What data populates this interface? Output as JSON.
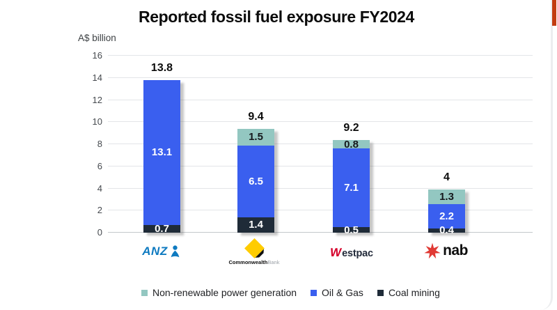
{
  "chart_data": {
    "type": "bar",
    "stacked": true,
    "title": "Reported fossil fuel exposure FY2024",
    "ylabel": "A$ billion",
    "ylim": [
      0,
      16
    ],
    "yticks": [
      16,
      14,
      12,
      10,
      8,
      6,
      4,
      2,
      0
    ],
    "grid": true,
    "legend_position": "bottom",
    "categories": [
      "ANZ",
      "Commonwealth Bank",
      "Westpac",
      "nab"
    ],
    "totals": [
      "13.8",
      "9.4",
      "9.2",
      "4"
    ],
    "series": [
      {
        "name": "Non-renewable power generation",
        "color": "#93C7C1",
        "values": [
          0,
          1.5,
          0.8,
          1.3
        ]
      },
      {
        "name": "Oil & Gas",
        "color": "#3A5FEF",
        "values": [
          13.1,
          6.5,
          7.1,
          2.2
        ]
      },
      {
        "name": "Coal mining",
        "color": "#1F2B38",
        "values": [
          0.7,
          1.4,
          0.5,
          0.4
        ]
      }
    ]
  },
  "logos": {
    "anz": "ANZ",
    "cba_bold": "Commonwealth",
    "cba_light": "Bank",
    "westpac_w": "W",
    "westpac_rest": "estpac",
    "nab": "nab",
    "anz_blue": "#0E7AC0",
    "cba_yellow": "#FFCC00",
    "westpac_red": "#D5002B",
    "nab_red": "#E03A34"
  },
  "ui": {
    "accent_strip_color": "#C23B10"
  }
}
